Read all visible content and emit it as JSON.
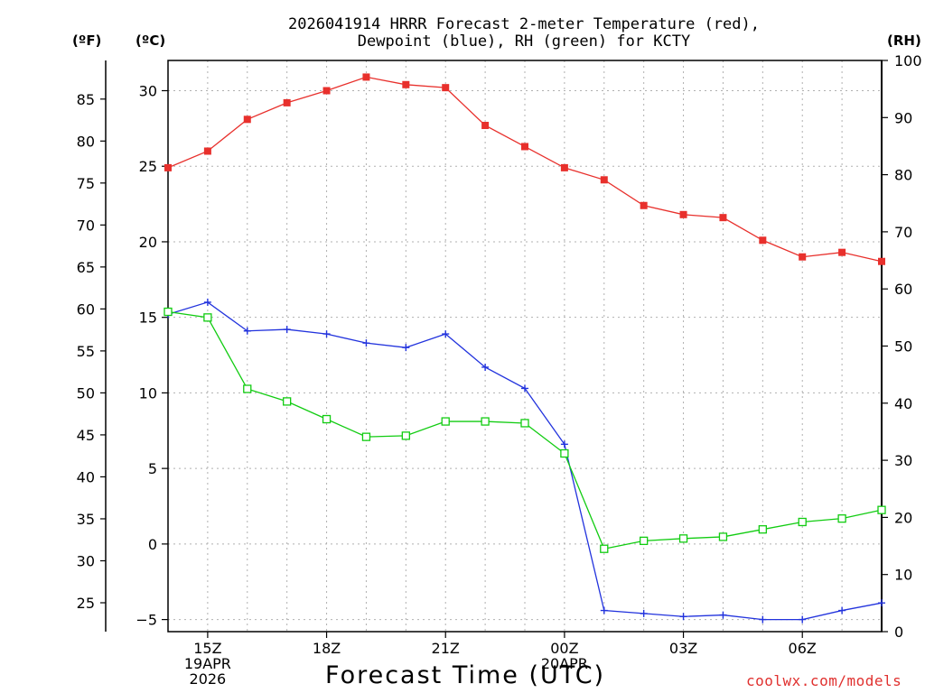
{
  "chart_data": {
    "type": "line",
    "title_line1": "2026041914 HRRR Forecast 2-meter Temperature (red),",
    "title_line2": "Dewpoint (blue), RH (green) for KCTY",
    "xlabel": "Forecast Time (UTC)",
    "credit": "coolwx.com/models",
    "units": {
      "fahrenheit": "(ºF)",
      "celsius": "(ºC)",
      "rh": "(RH)"
    },
    "x": [
      14,
      15,
      16,
      17,
      18,
      19,
      20,
      21,
      22,
      23,
      24,
      25,
      26,
      27,
      28,
      29,
      30,
      31,
      32
    ],
    "xlim": [
      14,
      32
    ],
    "x_ticks": [
      {
        "x": 15,
        "lines": [
          "15Z",
          "19APR",
          "2026"
        ]
      },
      {
        "x": 18,
        "lines": [
          "18Z"
        ]
      },
      {
        "x": 21,
        "lines": [
          "21Z"
        ]
      },
      {
        "x": 24,
        "lines": [
          "00Z",
          "20APR"
        ]
      },
      {
        "x": 27,
        "lines": [
          "03Z"
        ]
      },
      {
        "x": 30,
        "lines": [
          "06Z"
        ]
      }
    ],
    "y_celsius": {
      "lim": [
        -5.8,
        32.0
      ],
      "ticks": [
        -5,
        0,
        5,
        10,
        15,
        20,
        25,
        30
      ]
    },
    "y_fahrenheit": {
      "ticks": [
        25,
        30,
        35,
        40,
        45,
        50,
        55,
        60,
        65,
        70,
        75,
        80,
        85
      ]
    },
    "y_rh": {
      "lim": [
        0,
        100
      ],
      "ticks": [
        0,
        10,
        20,
        30,
        40,
        50,
        60,
        70,
        80,
        90,
        100
      ]
    },
    "colors": {
      "temperature": "#e8302c",
      "dewpoint": "#2233dd",
      "rh": "#11cc11",
      "grid": "#b0b0b0"
    },
    "series": [
      {
        "name": "Temperature",
        "axis": "celsius",
        "marker": "filled-square",
        "values": [
          24.9,
          26.0,
          28.1,
          29.2,
          30.0,
          30.9,
          30.4,
          30.2,
          27.7,
          26.3,
          24.9,
          24.1,
          22.4,
          21.8,
          21.6,
          20.1,
          19.0,
          19.3,
          18.7
        ]
      },
      {
        "name": "Dewpoint",
        "axis": "celsius",
        "marker": "plus",
        "values": [
          15.2,
          16.0,
          14.1,
          14.2,
          13.9,
          13.3,
          13.0,
          13.9,
          11.7,
          10.3,
          6.6,
          -4.4,
          -4.6,
          -4.8,
          -4.7,
          -5.0,
          -5.0,
          -4.4,
          -3.9
        ]
      },
      {
        "name": "RH",
        "axis": "rh",
        "marker": "open-square",
        "values": [
          56,
          55,
          42.5,
          40.3,
          37.2,
          34.1,
          34.3,
          36.8,
          36.8,
          36.5,
          31.2,
          14.5,
          15.9,
          16.3,
          16.6,
          17.9,
          19.2,
          19.8,
          21.3
        ]
      }
    ]
  }
}
